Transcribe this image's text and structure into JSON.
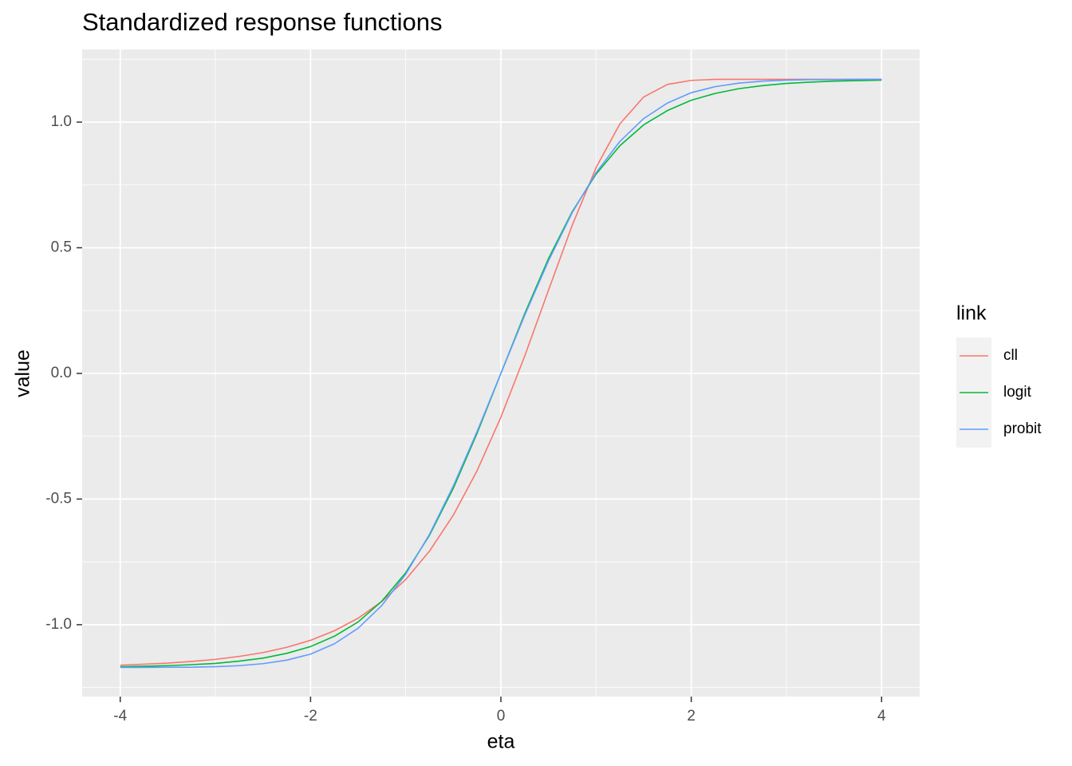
{
  "chart_data": {
    "type": "line",
    "title": "Standardized response functions",
    "x_label": "eta",
    "y_label": "value",
    "legend_title": "link",
    "legend_position": "right",
    "x": [
      -4,
      -3.75,
      -3.5,
      -3.25,
      -3,
      -2.75,
      -2.5,
      -2.25,
      -2,
      -1.75,
      -1.5,
      -1.25,
      -1,
      -0.75,
      -0.5,
      -0.25,
      0,
      0.25,
      0.5,
      0.75,
      1,
      1.25,
      1.5,
      1.75,
      2,
      2.25,
      2.5,
      2.75,
      3,
      3.25,
      3.5,
      3.75,
      4
    ],
    "series": [
      {
        "name": "cll",
        "color": "#F8766D",
        "values": [
          -1.161,
          -1.157,
          -1.153,
          -1.146,
          -1.138,
          -1.126,
          -1.111,
          -1.09,
          -1.062,
          -1.024,
          -0.974,
          -0.907,
          -0.82,
          -0.707,
          -0.564,
          -0.387,
          -0.174,
          0.069,
          0.331,
          0.59,
          0.819,
          0.993,
          1.1,
          1.15,
          1.166,
          1.17,
          1.17,
          1.17,
          1.17,
          1.17,
          1.17,
          1.17,
          1.17
        ]
      },
      {
        "name": "logit",
        "color": "#00BA38",
        "values": [
          -1.167,
          -1.165,
          -1.163,
          -1.159,
          -1.154,
          -1.145,
          -1.133,
          -1.114,
          -1.087,
          -1.046,
          -0.989,
          -0.906,
          -0.793,
          -0.644,
          -0.457,
          -0.238,
          0,
          0.238,
          0.457,
          0.644,
          0.793,
          0.906,
          0.989,
          1.046,
          1.087,
          1.114,
          1.133,
          1.145,
          1.154,
          1.159,
          1.163,
          1.165,
          1.167
        ]
      },
      {
        "name": "probit",
        "color": "#619CFF",
        "values": [
          -1.17,
          -1.17,
          -1.169,
          -1.169,
          -1.167,
          -1.163,
          -1.155,
          -1.141,
          -1.117,
          -1.076,
          -1.014,
          -0.923,
          -0.799,
          -0.64,
          -0.448,
          -0.231,
          0,
          0.231,
          0.448,
          0.64,
          0.799,
          0.923,
          1.014,
          1.076,
          1.117,
          1.141,
          1.155,
          1.163,
          1.167,
          1.169,
          1.169,
          1.17,
          1.17
        ]
      }
    ],
    "xlim": [
      -4.4,
      4.4
    ],
    "ylim": [
      -1.286,
      1.289
    ],
    "xticks": [
      -4,
      -2,
      0,
      2,
      4
    ],
    "yticks": [
      {
        "value": -1,
        "label": "-1.0"
      },
      -0.5,
      {
        "value": 0,
        "label": "0.0"
      },
      0.5,
      {
        "value": 1,
        "label": "1.0"
      }
    ],
    "x_minor_ticks": [
      -3,
      -1,
      1,
      3
    ],
    "y_minor_ticks": [
      -1.25,
      -0.75,
      -0.25,
      0.25,
      0.75,
      1.25
    ],
    "grid": true,
    "panel_color": "#EBEBEB"
  }
}
